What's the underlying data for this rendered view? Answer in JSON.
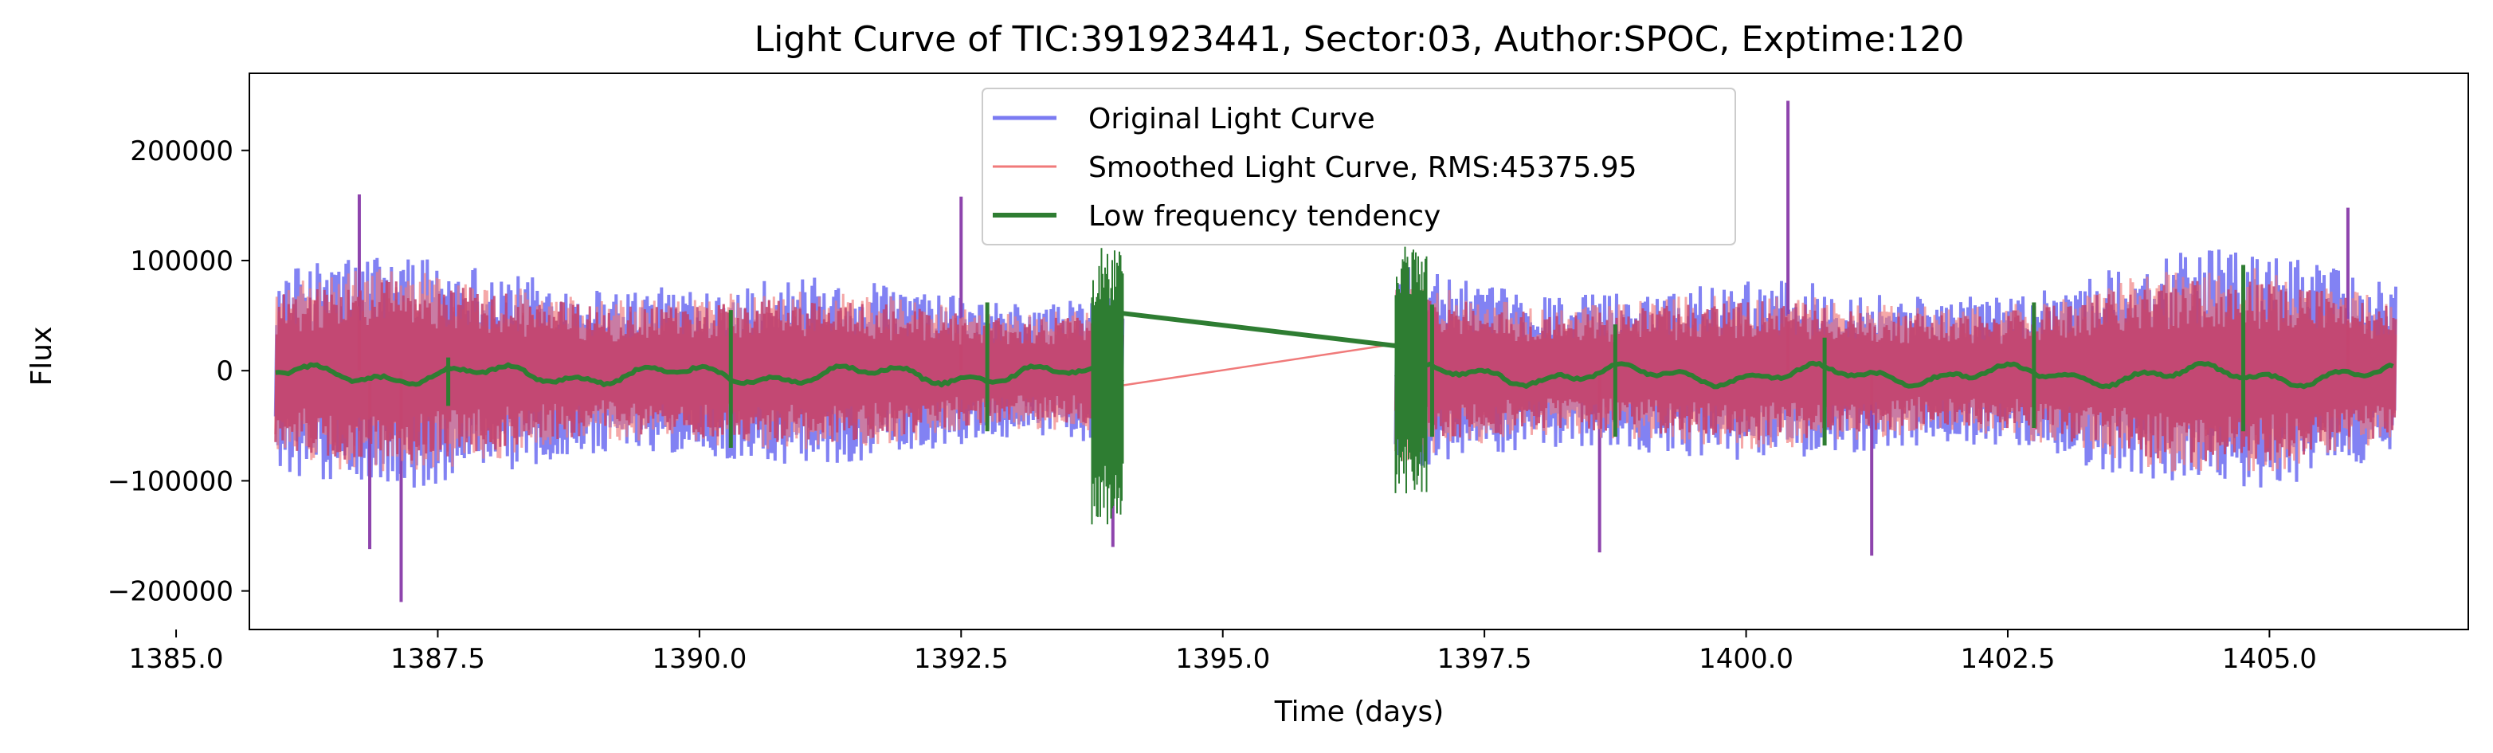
{
  "chart_data": {
    "type": "line",
    "title": "Light Curve of TIC:391923441, Sector:03, Author:SPOC, Exptime:120",
    "xlabel": "Time (days)",
    "ylabel": "Flux",
    "xlim": [
      1385.7,
      1406.9
    ],
    "ylim": [
      -235000,
      270000
    ],
    "x_ticks": [
      1385.0,
      1387.5,
      1390.0,
      1392.5,
      1395.0,
      1397.5,
      1400.0,
      1402.5,
      1405.0
    ],
    "x_tick_labels": [
      "1385.0",
      "1387.5",
      "1390.0",
      "1392.5",
      "1395.0",
      "1397.5",
      "1400.0",
      "1402.5",
      "1405.0"
    ],
    "y_ticks": [
      -200000,
      -100000,
      0,
      100000,
      200000
    ],
    "y_tick_labels": [
      "−200000",
      "−100000",
      "0",
      "100000",
      "200000"
    ],
    "grid": false,
    "legend_position": "top-center",
    "data_segments": [
      {
        "x_start": 1385.95,
        "x_end": 1394.05
      },
      {
        "x_start": 1396.65,
        "x_end": 1406.2
      }
    ],
    "series": [
      {
        "name": "Original Light Curve",
        "color": "#7b7bf2",
        "style": "noisy",
        "amplitude": 110000,
        "extremes": [
          {
            "x": 1387.15,
            "y": -210000
          },
          {
            "x": 1400.4,
            "y": 245000
          },
          {
            "x": 1386.75,
            "y": 160000
          },
          {
            "x": 1392.5,
            "y": 158000
          },
          {
            "x": 1386.85,
            "y": -162000
          },
          {
            "x": 1393.95,
            "y": -160000
          },
          {
            "x": 1398.6,
            "y": -165000
          },
          {
            "x": 1401.2,
            "y": -168000
          },
          {
            "x": 1405.75,
            "y": 148000
          }
        ]
      },
      {
        "name": "Smoothed Light Curve, RMS:45375.95",
        "color": "#f07a7a",
        "style": "noisy",
        "amplitude": 95000,
        "gap_bridge": [
          [
            1394.0,
            -14000
          ],
          [
            1396.7,
            25000
          ]
        ]
      },
      {
        "name": "Low frequency tendency",
        "color": "#2e7d32",
        "style": "trend",
        "amplitude": 8000,
        "gap_bridge": [
          [
            1394.05,
            52000
          ],
          [
            1396.7,
            22000
          ]
        ],
        "spikes": [
          {
            "x": 1387.6,
            "y1": -32000,
            "y2": 12000
          },
          {
            "x": 1390.3,
            "y1": -70000,
            "y2": 55000
          },
          {
            "x": 1392.75,
            "y1": -55000,
            "y2": 62000
          },
          {
            "x": 1397.0,
            "y1": -60000,
            "y2": 60000
          },
          {
            "x": 1398.75,
            "y1": -60000,
            "y2": 42000
          },
          {
            "x": 1400.75,
            "y1": -68000,
            "y2": 30000
          },
          {
            "x": 1402.75,
            "y1": -52000,
            "y2": 62000
          },
          {
            "x": 1404.75,
            "y1": -55000,
            "y2": 96000
          }
        ],
        "dense_blocks": [
          {
            "x_start": 1393.75,
            "x_end": 1394.05,
            "y_min": -155000,
            "y_max": 130000
          },
          {
            "x_start": 1396.65,
            "x_end": 1396.95,
            "y_min": -125000,
            "y_max": 130000
          }
        ]
      }
    ],
    "legend_entries": [
      "Original Light Curve",
      "Smoothed Light Curve, RMS:45375.95",
      "Low frequency tendency"
    ]
  }
}
